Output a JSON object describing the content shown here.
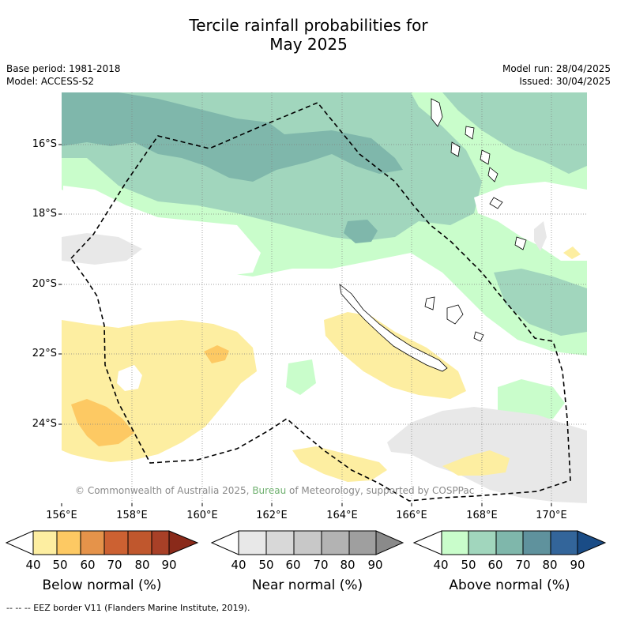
{
  "title_line1": "Tercile rainfall probabilities for",
  "title_line2": "May 2025",
  "base_period": "Base period: 1981-2018",
  "model": "Model: ACCESS-S2",
  "model_run": "Model run: 28/04/2025",
  "issued": "Issued: 30/04/2025",
  "lat_labels": [
    "16°S",
    "18°S",
    "20°S",
    "22°S",
    "24°S"
  ],
  "lon_labels": [
    "156°E",
    "158°E",
    "160°E",
    "162°E",
    "164°E",
    "166°E",
    "168°E",
    "170°E"
  ],
  "copyright_pre": "© Commonwealth of Australia 2025, ",
  "copyright_bureau": "Bureau",
  "copyright_post": " of Meteorology, supported by COSPPac",
  "colorbars": [
    {
      "title": "Below normal (%)",
      "ticks": [
        "40",
        "50",
        "60",
        "70",
        "80",
        "90"
      ],
      "colors": [
        "#ffffff",
        "#fdeea1",
        "#fdc963",
        "#e5934a",
        "#cc6132",
        "#a84027",
        "#8a2a1a"
      ]
    },
    {
      "title": "Near normal (%)",
      "ticks": [
        "40",
        "50",
        "60",
        "70",
        "80",
        "90"
      ],
      "colors": [
        "#ffffff",
        "#e8e8e8",
        "#d8d8d8",
        "#c8c8c8",
        "#b3b3b3",
        "#9f9f9f",
        "#8a8a8a"
      ]
    },
    {
      "title": "Above normal (%)",
      "ticks": [
        "40",
        "50",
        "60",
        "70",
        "80",
        "90"
      ],
      "colors": [
        "#ffffff",
        "#c9fdcb",
        "#a1d6bd",
        "#7fb7ab",
        "#5f929d",
        "#33659a",
        "#1a4c86"
      ]
    }
  ],
  "footer": "-- -- -- EEZ border V11 (Flanders Marine Institute, 2019)."
}
